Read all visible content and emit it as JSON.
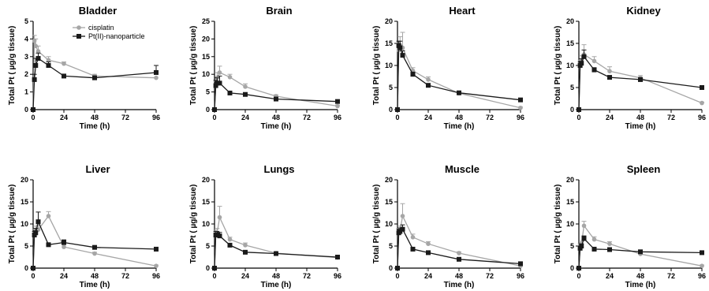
{
  "chart_data": {
    "type": "line",
    "xlabel": "Time (h)",
    "ylabel": "Total Pt ( µg/g tissue)",
    "legend": {
      "placement": "top-right inside first panel",
      "entries": [
        {
          "name": "cisplatin",
          "color": "#a6a6a6",
          "marker": "circle"
        },
        {
          "name": "Pt(II)-nanoparticle",
          "color": "#1a1a1a",
          "marker": "square"
        }
      ]
    },
    "panels": [
      {
        "title": "Bladder",
        "xlim": [
          0,
          96
        ],
        "ylim": [
          0,
          5
        ],
        "xticks": [
          "0",
          "24",
          "48",
          "72",
          "96"
        ],
        "yticks": [
          "0",
          "1",
          "2",
          "3",
          "4",
          "5"
        ],
        "series": [
          {
            "name": "cisplatin",
            "x": [
              0,
              1,
              2,
              4,
              12,
              24,
              48,
              96
            ],
            "y": [
              0,
              3.9,
              3.6,
              3.3,
              2.8,
              2.6,
              1.9,
              1.8
            ],
            "err": [
              0,
              0.3,
              0.4,
              0.3,
              0.2,
              0.1,
              0.1,
              0
            ]
          },
          {
            "name": "Pt(II)-nanoparticle",
            "x": [
              0,
              1,
              2,
              4,
              12,
              24,
              48,
              96
            ],
            "y": [
              0,
              1.7,
              2.5,
              2.9,
              2.5,
              1.9,
              1.8,
              2.1
            ],
            "err": [
              0,
              0.3,
              0.4,
              0.3,
              0.2,
              0.1,
              0.1,
              0.4
            ]
          }
        ]
      },
      {
        "title": "Brain",
        "xlim": [
          0,
          96
        ],
        "ylim": [
          0,
          25
        ],
        "xticks": [
          "0",
          "24",
          "48",
          "72",
          "96"
        ],
        "yticks": [
          "0",
          "5",
          "10",
          "15",
          "20",
          "25"
        ],
        "series": [
          {
            "name": "cisplatin",
            "x": [
              0,
              1,
              2,
              4,
              12,
              24,
              48,
              96
            ],
            "y": [
              0,
              7,
              9,
              10.5,
              9.2,
              6.5,
              3.8,
              1.0
            ],
            "err": [
              0,
              1,
              1.5,
              1.8,
              0.8,
              0.8,
              0.4,
              0.3
            ]
          },
          {
            "name": "Pt(II)-nanoparticle",
            "x": [
              0,
              1,
              2,
              4,
              12,
              24,
              48,
              96
            ],
            "y": [
              0,
              6.8,
              7.5,
              7.5,
              4.7,
              4.3,
              3.0,
              2.3
            ],
            "err": [
              0,
              1.5,
              1.5,
              2.0,
              0.3,
              0.4,
              0.3,
              0.2
            ]
          }
        ]
      },
      {
        "title": "Heart",
        "xlim": [
          0,
          96
        ],
        "ylim": [
          0,
          20
        ],
        "xticks": [
          "0",
          "24",
          "48",
          "72",
          "96"
        ],
        "yticks": [
          "0",
          "5",
          "10",
          "15",
          "20"
        ],
        "series": [
          {
            "name": "cisplatin",
            "x": [
              0,
              1,
              2,
              4,
              12,
              24,
              48,
              96
            ],
            "y": [
              0,
              13.5,
              14.5,
              14.0,
              8.8,
              6.8,
              3.7,
              0.4
            ],
            "err": [
              0,
              1.5,
              2.0,
              3.5,
              0.7,
              0.6,
              0.3,
              0.2
            ]
          },
          {
            "name": "Pt(II)-nanoparticle",
            "x": [
              0,
              1,
              2,
              4,
              12,
              24,
              48,
              96
            ],
            "y": [
              0,
              14.5,
              14.0,
              12.3,
              8.0,
              5.5,
              3.8,
              2.2
            ],
            "err": [
              0,
              1.0,
              1.5,
              1.0,
              0.5,
              0.3,
              0.3,
              0.2
            ]
          }
        ]
      },
      {
        "title": "Kidney",
        "xlim": [
          0,
          96
        ],
        "ylim": [
          0,
          20
        ],
        "xticks": [
          "0",
          "24",
          "48",
          "72",
          "96"
        ],
        "yticks": [
          "0",
          "5",
          "10",
          "15",
          "20"
        ],
        "series": [
          {
            "name": "cisplatin",
            "x": [
              0,
              1,
              2,
              4,
              12,
              24,
              48,
              96
            ],
            "y": [
              0,
              10.2,
              11.0,
              12.5,
              11.0,
              8.7,
              7.2,
              1.5
            ],
            "err": [
              0,
              1.0,
              1.2,
              2.2,
              1.0,
              1.0,
              0.5,
              0.2
            ]
          },
          {
            "name": "Pt(II)-nanoparticle",
            "x": [
              0,
              1,
              2,
              4,
              12,
              24,
              48,
              96
            ],
            "y": [
              0,
              10.0,
              10.5,
              12.0,
              9.0,
              7.3,
              6.8,
              5.0
            ],
            "err": [
              0,
              0.8,
              1.0,
              1.5,
              0.5,
              0.4,
              0.4,
              0.3
            ]
          }
        ]
      },
      {
        "title": "Liver",
        "xlim": [
          0,
          96
        ],
        "ylim": [
          0,
          20
        ],
        "xticks": [
          "0",
          "24",
          "48",
          "72",
          "96"
        ],
        "yticks": [
          "0",
          "5",
          "10",
          "15",
          "20"
        ],
        "series": [
          {
            "name": "cisplatin",
            "x": [
              0,
              1,
              2,
              4,
              12,
              24,
              48,
              96
            ],
            "y": [
              0,
              8.0,
              8.5,
              8.7,
              11.8,
              4.8,
              3.3,
              0.5
            ],
            "err": [
              0,
              0.8,
              1.0,
              1.0,
              1.0,
              0.5,
              0.3,
              0.2
            ]
          },
          {
            "name": "Pt(II)-nanoparticle",
            "x": [
              0,
              1,
              2,
              4,
              12,
              24,
              48,
              96
            ],
            "y": [
              0,
              7.5,
              8.0,
              10.5,
              5.3,
              5.8,
              4.7,
              4.3
            ],
            "err": [
              0,
              0.8,
              1.0,
              2.2,
              0.4,
              0.6,
              0.3,
              0.2
            ]
          }
        ]
      },
      {
        "title": "Lungs",
        "xlim": [
          0,
          96
        ],
        "ylim": [
          0,
          20
        ],
        "xticks": [
          "0",
          "24",
          "48",
          "72",
          "96"
        ],
        "yticks": [
          "0",
          "5",
          "10",
          "15",
          "20"
        ],
        "series": [
          {
            "name": "cisplatin",
            "x": [
              0,
              1,
              2,
              4,
              12,
              24,
              48,
              96
            ],
            "y": [
              0,
              7.8,
              8.0,
              11.5,
              6.5,
              5.2,
              3.4,
              2.4
            ],
            "err": [
              0,
              0.8,
              1.0,
              2.5,
              0.5,
              0.5,
              0.3,
              0.2
            ]
          },
          {
            "name": "Pt(II)-nanoparticle",
            "x": [
              0,
              1,
              2,
              4,
              12,
              24,
              48,
              96
            ],
            "y": [
              0,
              7.5,
              7.5,
              7.3,
              5.2,
              3.6,
              3.3,
              2.5
            ],
            "err": [
              0,
              0.8,
              0.8,
              0.8,
              0.3,
              0.3,
              0.2,
              0.2
            ]
          }
        ]
      },
      {
        "title": "Muscle",
        "xlim": [
          0,
          96
        ],
        "ylim": [
          0,
          20
        ],
        "xticks": [
          "0",
          "24",
          "48",
          "72",
          "96"
        ],
        "yticks": [
          "0",
          "5",
          "10",
          "15",
          "20"
        ],
        "series": [
          {
            "name": "cisplatin",
            "x": [
              0,
              1,
              2,
              4,
              12,
              24,
              48,
              96
            ],
            "y": [
              0,
              8.0,
              8.5,
              11.8,
              7.0,
              5.5,
              3.4,
              0.5
            ],
            "err": [
              0,
              1.0,
              1.0,
              2.8,
              0.7,
              0.5,
              0.3,
              0.2
            ]
          },
          {
            "name": "Pt(II)-nanoparticle",
            "x": [
              0,
              1,
              2,
              4,
              12,
              24,
              48,
              96
            ],
            "y": [
              0,
              8.0,
              8.3,
              8.8,
              4.3,
              3.5,
              2.0,
              1.0
            ],
            "err": [
              0,
              0.8,
              0.8,
              1.0,
              0.3,
              0.3,
              0.2,
              0.2
            ]
          }
        ]
      },
      {
        "title": "Spleen",
        "xlim": [
          0,
          96
        ],
        "ylim": [
          0,
          20
        ],
        "xticks": [
          "0",
          "24",
          "48",
          "72",
          "96"
        ],
        "yticks": [
          "0",
          "5",
          "10",
          "15",
          "20"
        ],
        "series": [
          {
            "name": "cisplatin",
            "x": [
              0,
              1,
              2,
              4,
              12,
              24,
              48,
              96
            ],
            "y": [
              0,
              5.0,
              5.5,
              9.6,
              6.5,
              5.5,
              3.2,
              0.5
            ],
            "err": [
              0,
              0.5,
              0.6,
              1.0,
              0.6,
              0.5,
              0.3,
              0.2
            ]
          },
          {
            "name": "Pt(II)-nanoparticle",
            "x": [
              0,
              1,
              2,
              4,
              12,
              24,
              48,
              96
            ],
            "y": [
              0,
              4.5,
              5.0,
              6.7,
              4.3,
              4.2,
              3.7,
              3.5
            ],
            "err": [
              0,
              0.5,
              0.5,
              0.6,
              0.3,
              0.3,
              0.2,
              0.2
            ]
          }
        ]
      }
    ]
  }
}
